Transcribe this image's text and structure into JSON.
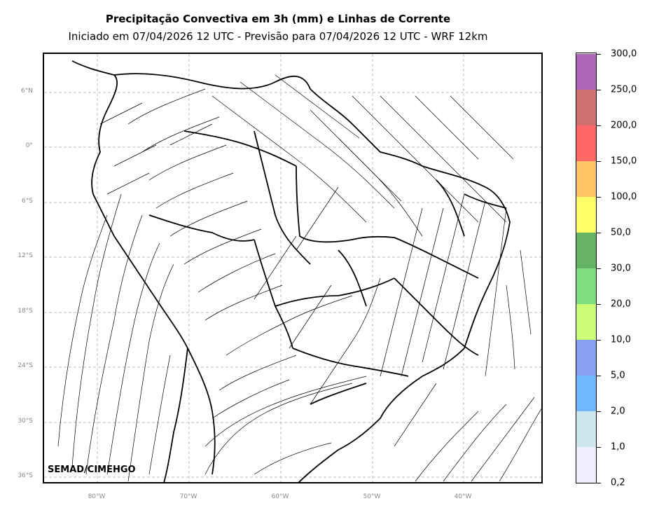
{
  "title": "Precipitação Convectiva em 3h (mm) e Linhas de Corrente",
  "subtitle": "Iniciado em 07/04/2026 12 UTC - Previsão para 07/04/2026 12 UTC - WRF 12km",
  "credit": "SEMAD/CIMEHGO",
  "lat_labels": [
    "6°N",
    "0°",
    "6°S",
    "12°S",
    "18°S",
    "24°S",
    "30°S",
    "36°S"
  ],
  "lon_labels": [
    "80°W",
    "70°W",
    "60°W",
    "50°W",
    "40°W"
  ],
  "colorbar": {
    "labels": [
      "0,2",
      "1,0",
      "2,0",
      "5,0",
      "10,0",
      "20,0",
      "30,0",
      "50,0",
      "100,0",
      "150,0",
      "200,0",
      "250,0",
      "300,0"
    ],
    "colors": [
      "#eeeeff",
      "#cfe6ef",
      "#71b8ff",
      "#8aa0f0",
      "#ccff77",
      "#7edd7e",
      "#66b366",
      "#ffff66",
      "#ffc466",
      "#ff6666",
      "#d07070",
      "#b066b8"
    ]
  }
}
